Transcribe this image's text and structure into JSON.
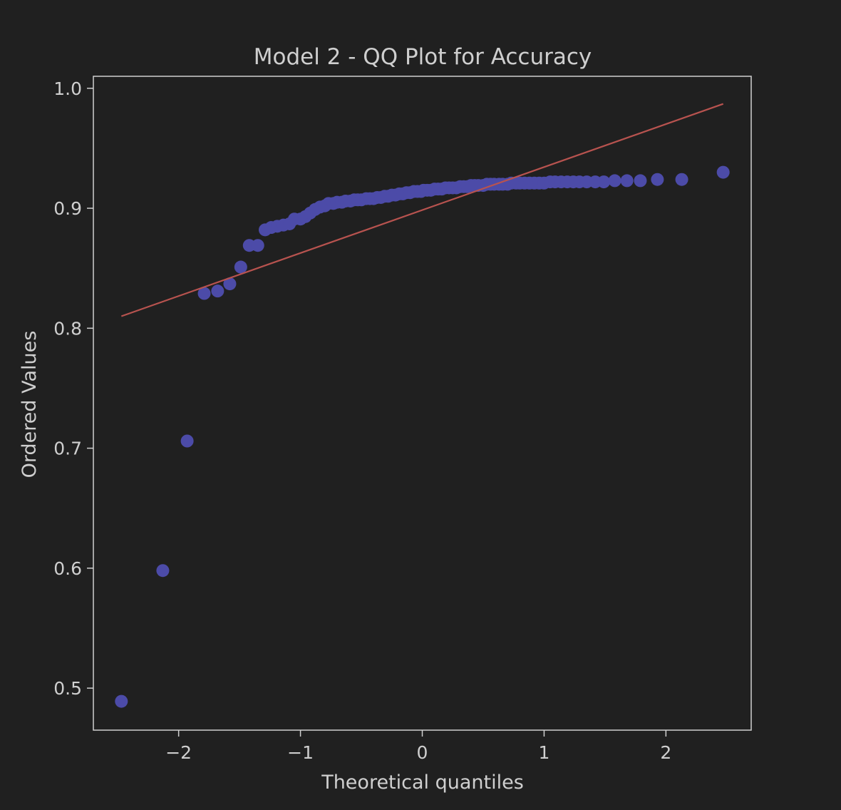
{
  "chart_data": {
    "type": "scatter",
    "title": "Model 2 - QQ Plot for Accuracy",
    "xlabel": "Theoretical quantiles",
    "ylabel": "Ordered Values",
    "xlim": [
      -2.7,
      2.7
    ],
    "ylim": [
      0.465,
      1.01
    ],
    "x_ticks": [
      -2,
      -1,
      0,
      1,
      2
    ],
    "x_tick_labels": [
      "−2",
      "−1",
      "0",
      "1",
      "2"
    ],
    "y_ticks": [
      0.5,
      0.6,
      0.7,
      0.8,
      0.9,
      1.0
    ],
    "y_tick_labels": [
      "0.5",
      "0.6",
      "0.7",
      "0.8",
      "0.9",
      "1.0"
    ],
    "grid": false,
    "colors": {
      "background": "#202020",
      "points": "#4c4ba8",
      "fit_line": "#b8534f",
      "axes": "#d0d0d0",
      "text": "#cfcfcf"
    },
    "fit_line": {
      "x": [
        -2.47,
        2.47
      ],
      "y": [
        0.81,
        0.987
      ]
    },
    "points": {
      "x": [
        -2.47,
        -2.13,
        -1.93,
        -1.79,
        -1.68,
        -1.58,
        -1.49,
        -1.42,
        -1.35,
        -1.29,
        -1.24,
        -1.19,
        -1.14,
        -1.09,
        -1.05,
        -1.0,
        -0.96,
        -0.92,
        -0.88,
        -0.84,
        -0.8,
        -0.77,
        -0.73,
        -0.7,
        -0.66,
        -0.63,
        -0.59,
        -0.56,
        -0.53,
        -0.5,
        -0.46,
        -0.43,
        -0.4,
        -0.37,
        -0.34,
        -0.31,
        -0.28,
        -0.25,
        -0.22,
        -0.19,
        -0.16,
        -0.13,
        -0.1,
        -0.07,
        -0.04,
        -0.01,
        0.01,
        0.04,
        0.07,
        0.1,
        0.13,
        0.16,
        0.19,
        0.22,
        0.25,
        0.28,
        0.31,
        0.34,
        0.37,
        0.4,
        0.43,
        0.46,
        0.5,
        0.53,
        0.56,
        0.59,
        0.63,
        0.66,
        0.7,
        0.73,
        0.77,
        0.8,
        0.84,
        0.88,
        0.92,
        0.96,
        1.0,
        1.05,
        1.09,
        1.14,
        1.19,
        1.24,
        1.29,
        1.35,
        1.42,
        1.49,
        1.58,
        1.68,
        1.79,
        1.93,
        2.13,
        2.47
      ],
      "y": [
        0.489,
        0.598,
        0.706,
        0.829,
        0.831,
        0.837,
        0.851,
        0.869,
        0.869,
        0.882,
        0.884,
        0.885,
        0.886,
        0.887,
        0.891,
        0.891,
        0.893,
        0.896,
        0.899,
        0.901,
        0.902,
        0.904,
        0.904,
        0.905,
        0.905,
        0.906,
        0.906,
        0.907,
        0.907,
        0.907,
        0.908,
        0.908,
        0.908,
        0.909,
        0.909,
        0.91,
        0.91,
        0.911,
        0.911,
        0.912,
        0.912,
        0.913,
        0.913,
        0.914,
        0.914,
        0.914,
        0.915,
        0.915,
        0.915,
        0.916,
        0.916,
        0.916,
        0.917,
        0.917,
        0.917,
        0.917,
        0.918,
        0.918,
        0.918,
        0.919,
        0.919,
        0.919,
        0.919,
        0.92,
        0.92,
        0.92,
        0.92,
        0.92,
        0.92,
        0.921,
        0.921,
        0.921,
        0.921,
        0.921,
        0.921,
        0.921,
        0.921,
        0.922,
        0.922,
        0.922,
        0.922,
        0.922,
        0.922,
        0.922,
        0.922,
        0.922,
        0.923,
        0.923,
        0.923,
        0.924,
        0.924,
        0.93
      ]
    }
  }
}
